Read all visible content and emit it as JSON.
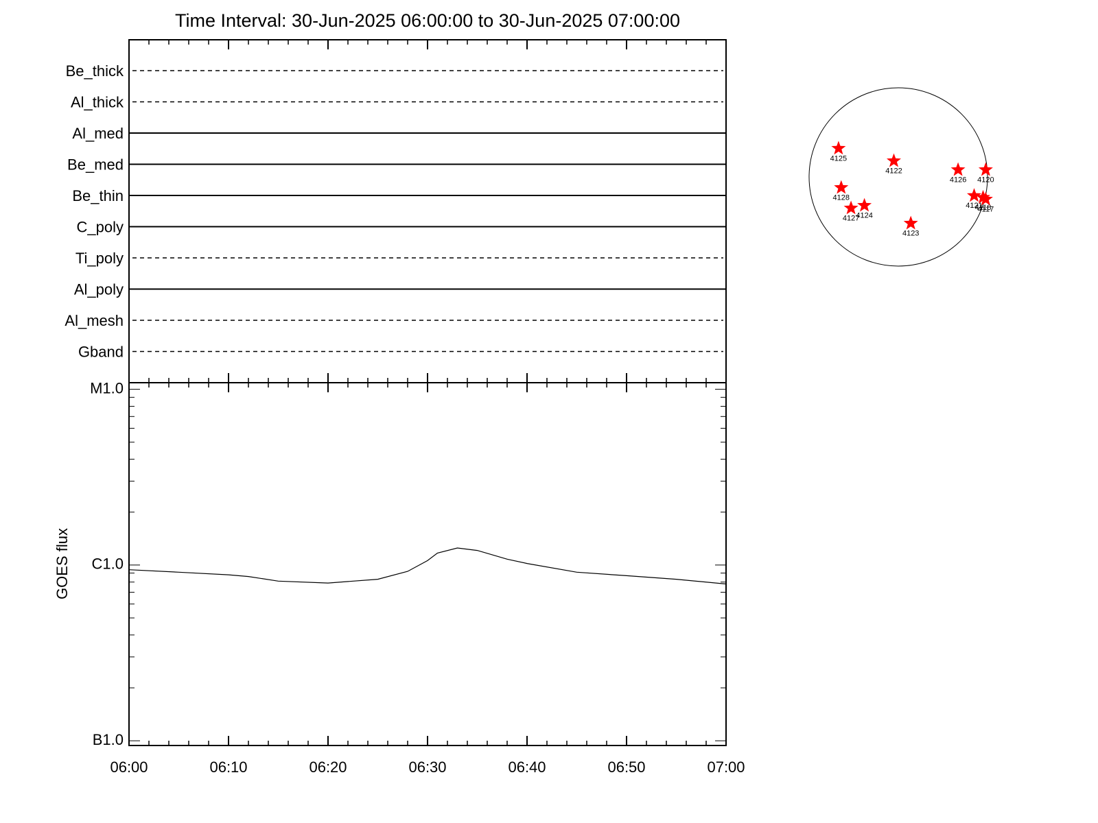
{
  "chart_data": [
    {
      "type": "filters",
      "title": "Time Interval: 30-Jun-2025 06:00:00 to 30-Jun-2025 07:00:00",
      "rows": [
        {
          "name": "Be_thick",
          "dashed": true
        },
        {
          "name": "Al_thick",
          "dashed": true
        },
        {
          "name": "Al_med",
          "dashed": false
        },
        {
          "name": "Be_med",
          "dashed": false
        },
        {
          "name": "Be_thin",
          "dashed": false
        },
        {
          "name": "C_poly",
          "dashed": false
        },
        {
          "name": "Ti_poly",
          "dashed": true
        },
        {
          "name": "Al_poly",
          "dashed": false
        },
        {
          "name": "Al_mesh",
          "dashed": true
        },
        {
          "name": "Gband",
          "dashed": true
        }
      ]
    },
    {
      "type": "line",
      "ylabel": "GOES flux",
      "x": [
        "06:00",
        "06:05",
        "06:10",
        "06:12",
        "06:15",
        "06:20",
        "06:25",
        "06:28",
        "06:30",
        "06:31",
        "06:33",
        "06:35",
        "06:38",
        "06:40",
        "06:45",
        "06:50",
        "06:55",
        "07:00"
      ],
      "values": [
        9.4e-07,
        9.1e-07,
        8.8e-07,
        8.6e-07,
        8.1e-07,
        7.9e-07,
        8.3e-07,
        9.2e-07,
        1.06e-06,
        1.17e-06,
        1.25e-06,
        1.21e-06,
        1.08e-06,
        1.02e-06,
        9.1e-07,
        8.7e-07,
        8.3e-07,
        7.8e-07
      ],
      "color": "#000000",
      "xlim": [
        "06:00",
        "07:00"
      ],
      "xticks": [
        "06:00",
        "06:10",
        "06:20",
        "06:30",
        "06:40",
        "06:50",
        "07:00"
      ],
      "ylim": [
        9.4e-08,
        1.09e-05
      ],
      "log_y": true,
      "yticks": [
        {
          "value": 1e-07,
          "label": "B1.0"
        },
        {
          "value": 1e-06,
          "label": "C1.0"
        },
        {
          "value": 1e-05,
          "label": "M1.0"
        }
      ]
    },
    {
      "type": "disk",
      "color": "#ff0000",
      "points": [
        {
          "label": "4125",
          "x": -0.67,
          "y": 0.32
        },
        {
          "label": "4122",
          "x": -0.05,
          "y": 0.18
        },
        {
          "label": "4126",
          "x": 0.67,
          "y": 0.08
        },
        {
          "label": "4120",
          "x": 0.98,
          "y": 0.08
        },
        {
          "label": "4128",
          "x": -0.64,
          "y": -0.12
        },
        {
          "label": "4127",
          "x": -0.53,
          "y": -0.35
        },
        {
          "label": "4124",
          "x": -0.38,
          "y": -0.32
        },
        {
          "label": "4123",
          "x": 0.14,
          "y": -0.52
        },
        {
          "label": "4121",
          "x": 0.85,
          "y": -0.21
        },
        {
          "label": "4118",
          "x": 0.95,
          "y": -0.23
        },
        {
          "label": "4117",
          "x": 0.98,
          "y": -0.25
        }
      ]
    }
  ]
}
